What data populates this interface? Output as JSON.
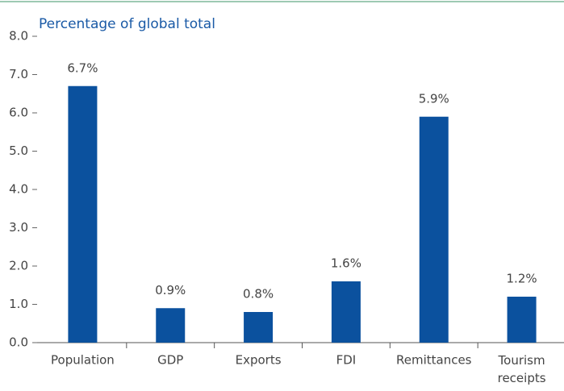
{
  "chart_data": {
    "type": "bar",
    "title": "Percentage of global total",
    "categories": [
      "Population",
      "GDP",
      "Exports",
      "FDI",
      "Remittances",
      "Tourism receipts"
    ],
    "values": [
      6.7,
      0.9,
      0.8,
      1.6,
      5.9,
      1.2
    ],
    "value_labels": [
      "6.7%",
      "0.9%",
      "0.8%",
      "1.6%",
      "5.9%",
      "1.2%"
    ],
    "color": "#0b519e",
    "ylim": [
      0,
      8
    ],
    "yticks": [
      {
        "value": 0,
        "label": "0.0"
      },
      {
        "value": 1,
        "label": "1.0"
      },
      {
        "value": 2,
        "label": "2.0"
      },
      {
        "value": 3,
        "label": "3.0"
      },
      {
        "value": 4,
        "label": "4.0"
      },
      {
        "value": 5,
        "label": "5.0"
      },
      {
        "value": 6,
        "label": "6.0"
      },
      {
        "value": 7,
        "label": "7.0"
      },
      {
        "value": 8,
        "label": "8.0"
      }
    ],
    "grid": false
  }
}
